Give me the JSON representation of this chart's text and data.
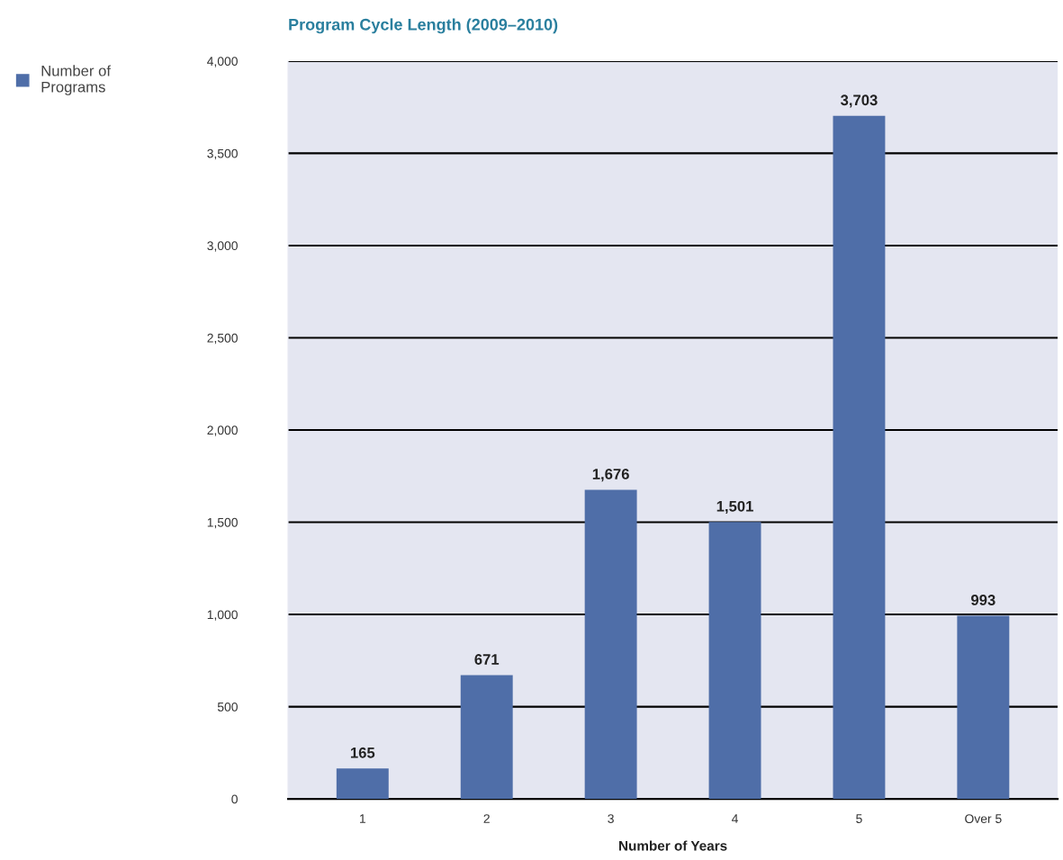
{
  "chart_data": {
    "type": "bar",
    "title": "Program Cycle Length (2009–2010)",
    "xlabel": "Number of Years",
    "categories": [
      "1",
      "2",
      "3",
      "4",
      "5",
      "Over 5"
    ],
    "series": [
      {
        "name": "Number of\nPrograms",
        "color": "#4f6ea8",
        "values": [
          165,
          671,
          1676,
          1501,
          3703,
          993
        ]
      }
    ],
    "value_labels": [
      "165",
      "671",
      "1,676",
      "1,501",
      "3,703",
      "993"
    ],
    "ylim": [
      0,
      4000
    ],
    "yticks": [
      0,
      {
        "value": 500,
        "label": "500"
      },
      {
        "value": 1000,
        "label": "1,000"
      },
      {
        "value": 1500,
        "label": "1,500"
      },
      {
        "value": 2000,
        "label": "2,000"
      },
      {
        "value": 2500,
        "label": "2,500"
      },
      {
        "value": 3000,
        "label": "3,000"
      },
      {
        "value": 3500,
        "label": "3,500"
      },
      {
        "value": 4000,
        "label": "4,000"
      }
    ],
    "grid": "y",
    "legend": "top left"
  }
}
